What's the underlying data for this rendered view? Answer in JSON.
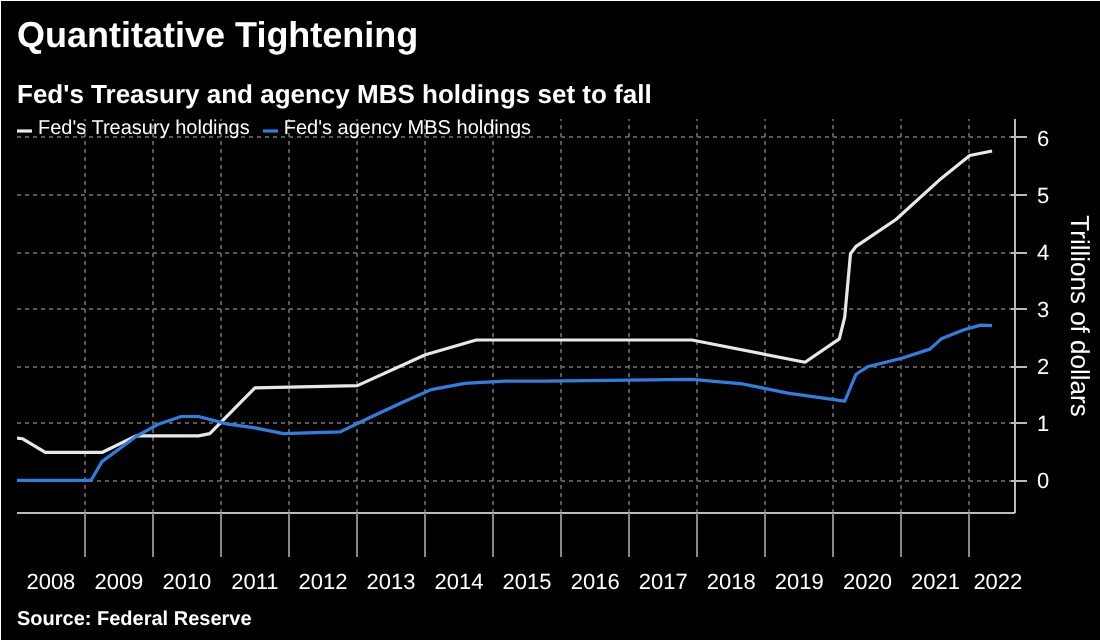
{
  "chart_data": {
    "type": "line",
    "title": "Quantitative Tightening",
    "subtitle": "Fed's Treasury and agency MBS holdings set to fall",
    "ylabel": "Trillions of dollars",
    "annotations": [
      "Source: Federal Reserve"
    ],
    "series": [
      {
        "name": "Fed's Treasury holdings",
        "color": "#e8e8e8",
        "x": [
          "2008-01",
          "2008-02",
          "2008-06",
          "2009-04",
          "2009-10",
          "2010-09",
          "2010-11",
          "2011-07",
          "2013-01",
          "2014-01",
          "2014-10",
          "2017-12",
          "2019-08",
          "2020-02",
          "2020-03",
          "2020-04",
          "2020-05",
          "2020-12",
          "2021-08",
          "2022-01",
          "2022-05"
        ],
        "values": [
          0.74,
          0.73,
          0.49,
          0.49,
          0.78,
          0.78,
          0.82,
          1.62,
          1.66,
          2.2,
          2.46,
          2.46,
          2.07,
          2.48,
          2.86,
          3.97,
          4.1,
          4.57,
          5.29,
          5.69,
          5.77
        ]
      },
      {
        "name": "Fed's agency MBS holdings",
        "color": "#2f7fe0",
        "x": [
          "2008-01",
          "2009-02",
          "2009-04",
          "2009-10",
          "2010-02",
          "2010-06",
          "2010-09",
          "2011-02",
          "2011-07",
          "2011-12",
          "2012-10",
          "2013-03",
          "2013-09",
          "2014-02",
          "2014-08",
          "2015-03",
          "2015-10",
          "2017-12",
          "2018-09",
          "2019-05",
          "2020-03",
          "2020-05",
          "2020-07",
          "2021-01",
          "2021-06",
          "2021-08",
          "2021-12",
          "2022-03",
          "2022-05"
        ],
        "values": [
          0,
          0,
          0.33,
          0.77,
          0.99,
          1.12,
          1.12,
          0.99,
          0.92,
          0.82,
          0.85,
          1.09,
          1.37,
          1.59,
          1.7,
          1.74,
          1.74,
          1.77,
          1.69,
          1.53,
          1.39,
          1.86,
          1.99,
          2.14,
          2.3,
          2.48,
          2.64,
          2.72,
          2.71
        ]
      }
    ],
    "xlim": [
      "2008-01",
      "2022-09"
    ],
    "xticks": [
      {
        "value": "2008-07",
        "label": "2008"
      },
      {
        "value": "2009-01",
        "label": null
      },
      {
        "value": "2009-07",
        "label": "2009"
      },
      {
        "value": "2010-01",
        "label": null
      },
      {
        "value": "2010-07",
        "label": "2010"
      },
      {
        "value": "2011-01",
        "label": null
      },
      {
        "value": "2011-07",
        "label": "2011"
      },
      {
        "value": "2012-01",
        "label": null
      },
      {
        "value": "2012-07",
        "label": "2012"
      },
      {
        "value": "2013-01",
        "label": null
      },
      {
        "value": "2013-07",
        "label": "2013"
      },
      {
        "value": "2014-01",
        "label": null
      },
      {
        "value": "2014-07",
        "label": "2014"
      },
      {
        "value": "2015-01",
        "label": null
      },
      {
        "value": "2015-07",
        "label": "2015"
      },
      {
        "value": "2016-01",
        "label": null
      },
      {
        "value": "2016-07",
        "label": "2016"
      },
      {
        "value": "2017-01",
        "label": null
      },
      {
        "value": "2017-07",
        "label": "2017"
      },
      {
        "value": "2018-01",
        "label": null
      },
      {
        "value": "2018-07",
        "label": "2018"
      },
      {
        "value": "2019-01",
        "label": null
      },
      {
        "value": "2019-07",
        "label": "2019"
      },
      {
        "value": "2020-01",
        "label": null
      },
      {
        "value": "2020-07",
        "label": "2020"
      },
      {
        "value": "2021-01",
        "label": null
      },
      {
        "value": "2021-07",
        "label": "2021"
      },
      {
        "value": "2022-01",
        "label": null
      },
      {
        "value": "2022-06",
        "label": "2022"
      }
    ],
    "ylim": [
      -0.57,
      6.33
    ],
    "yticks": [
      0,
      1,
      2,
      3,
      4,
      5,
      6
    ],
    "grid": true,
    "legend": "top left",
    "line_style": "solid",
    "marker": "none"
  }
}
